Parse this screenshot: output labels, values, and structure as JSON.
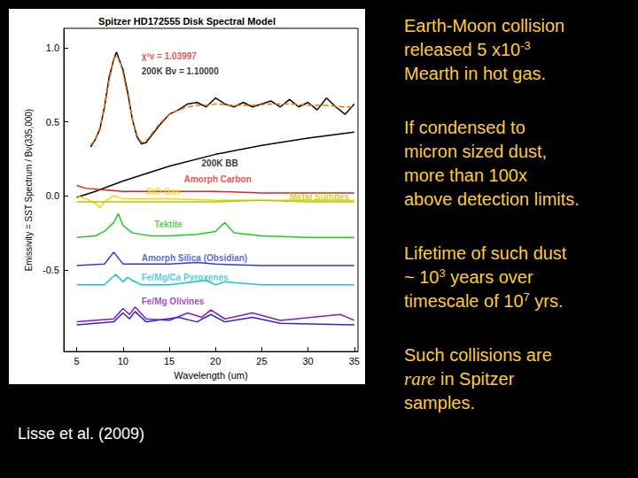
{
  "chart_data": {
    "type": "line",
    "title": "Spitzer HD172555 Disk Spectral Model",
    "x_label": "Wavelength (um)",
    "y_label": "Emissivity = SST Spectrum / Bν(335,000)",
    "xlim": [
      3.6,
      35.4
    ],
    "xticks": [
      5,
      10,
      15,
      20,
      25,
      30,
      35
    ],
    "ylim": [
      -1.05,
      1.13
    ],
    "yticks": [
      -0.5,
      {
        "value": 0,
        "label": "0.0"
      },
      0.5,
      {
        "value": 1,
        "label": "1.0"
      }
    ],
    "grid": false,
    "series": [
      {
        "color": "#000000",
        "line_style": "solid",
        "x": [
          6.5,
          7,
          7.5,
          8,
          8.5,
          9,
          9.3,
          9.7,
          10,
          10.5,
          11,
          11.5,
          12,
          12.5,
          13,
          14,
          15,
          16,
          17,
          18,
          19,
          20,
          21,
          22,
          23,
          24,
          25,
          26,
          27,
          28,
          29,
          30,
          31,
          32,
          33,
          34,
          35
        ],
        "values": [
          0.33,
          0.38,
          0.45,
          0.6,
          0.8,
          0.92,
          0.97,
          0.9,
          0.85,
          0.7,
          0.52,
          0.4,
          0.35,
          0.36,
          0.4,
          0.48,
          0.55,
          0.58,
          0.62,
          0.63,
          0.6,
          0.66,
          0.62,
          0.6,
          0.63,
          0.6,
          0.62,
          0.64,
          0.6,
          0.65,
          0.6,
          0.63,
          0.58,
          0.66,
          0.6,
          0.55,
          0.62
        ]
      },
      {
        "color": "#ff6a00",
        "line_style": "dashed",
        "x": [
          6.5,
          7,
          7.5,
          8,
          8.5,
          9,
          9.3,
          9.7,
          10,
          10.5,
          11,
          11.5,
          12,
          12.5,
          13,
          14,
          15,
          16,
          17,
          18,
          19,
          20,
          22,
          24,
          26,
          28,
          30,
          32,
          34,
          35
        ],
        "values": [
          0.34,
          0.38,
          0.46,
          0.6,
          0.78,
          0.92,
          0.95,
          0.9,
          0.83,
          0.68,
          0.52,
          0.41,
          0.36,
          0.37,
          0.41,
          0.49,
          0.55,
          0.58,
          0.6,
          0.61,
          0.61,
          0.62,
          0.61,
          0.61,
          0.62,
          0.62,
          0.61,
          0.61,
          0.6,
          0.6
        ]
      },
      {
        "color": "#000000",
        "line_style": "solid",
        "x": [
          5,
          7,
          10,
          15,
          20,
          25,
          30,
          35
        ],
        "values": [
          -0.01,
          0.03,
          0.1,
          0.2,
          0.28,
          0.34,
          0.39,
          0.43
        ]
      },
      {
        "color": "#e8221b",
        "line_style": "solid",
        "x": [
          5,
          6,
          8,
          10,
          15,
          20,
          25,
          30,
          35
        ],
        "values": [
          0.07,
          0.05,
          0.04,
          0.03,
          0.03,
          0.03,
          0.02,
          0.02,
          0.02
        ]
      },
      {
        "color": "#f2d600",
        "line_style": "solid",
        "x": [
          5,
          6,
          7,
          7.5,
          8,
          9,
          10,
          12,
          15,
          20,
          25,
          30,
          35
        ],
        "values": [
          0.0,
          -0.02,
          -0.05,
          -0.08,
          -0.04,
          0.0,
          -0.02,
          -0.02,
          -0.02,
          -0.03,
          -0.03,
          -0.03,
          -0.03
        ]
      },
      {
        "color": "#b5c900",
        "line_style": "solid",
        "x": [
          5,
          10,
          15,
          20,
          25,
          30,
          35
        ],
        "values": [
          -0.04,
          -0.04,
          -0.04,
          -0.04,
          -0.03,
          -0.04,
          -0.04
        ]
      },
      {
        "color": "#22c922",
        "line_style": "solid",
        "x": [
          5,
          7,
          8,
          9,
          9.5,
          10,
          11,
          13,
          15,
          18,
          20,
          21,
          22,
          25,
          30,
          35
        ],
        "values": [
          -0.28,
          -0.27,
          -0.24,
          -0.18,
          -0.12,
          -0.2,
          -0.25,
          -0.27,
          -0.27,
          -0.26,
          -0.24,
          -0.18,
          -0.25,
          -0.27,
          -0.28,
          -0.28
        ]
      },
      {
        "color": "#2d3fd1",
        "line_style": "solid",
        "x": [
          5,
          8,
          9,
          9.5,
          10,
          12,
          15,
          18,
          20,
          25,
          35
        ],
        "values": [
          -0.47,
          -0.46,
          -0.38,
          -0.42,
          -0.46,
          -0.46,
          -0.46,
          -0.45,
          -0.46,
          -0.47,
          -0.47
        ]
      },
      {
        "color": "#19c3d6",
        "line_style": "solid",
        "x": [
          5,
          8,
          9.2,
          10,
          10.5,
          11,
          12,
          15,
          19,
          20,
          21,
          25,
          35
        ],
        "values": [
          -0.6,
          -0.6,
          -0.53,
          -0.58,
          -0.55,
          -0.57,
          -0.6,
          -0.6,
          -0.57,
          -0.6,
          -0.58,
          -0.6,
          -0.6
        ]
      },
      {
        "color": "#8a1ab8",
        "line_style": "solid",
        "x": [
          5,
          9,
          10,
          10.7,
          11.3,
          12.5,
          15,
          17,
          18.5,
          19.5,
          21,
          24,
          27,
          33.5,
          35
        ],
        "values": [
          -0.85,
          -0.83,
          -0.76,
          -0.8,
          -0.75,
          -0.83,
          -0.84,
          -0.79,
          -0.82,
          -0.77,
          -0.83,
          -0.79,
          -0.84,
          -0.8,
          -0.84
        ]
      },
      {
        "color": "#2a2ad0",
        "line_style": "solid",
        "x": [
          5,
          9,
          10,
          10.7,
          11.3,
          12.5,
          16,
          18,
          19.5,
          21,
          24,
          27,
          35
        ],
        "values": [
          -0.87,
          -0.85,
          -0.79,
          -0.83,
          -0.78,
          -0.85,
          -0.82,
          -0.85,
          -0.8,
          -0.85,
          -0.82,
          -0.86,
          -0.87
        ]
      }
    ],
    "annotations": [
      {
        "text": "χ²ν = 1.03997",
        "x": 12,
        "y": 0.94,
        "color": "#e8221b"
      },
      {
        "text": "200K Bν = 1.10000",
        "x": 12,
        "y": 0.84,
        "color": "#000000"
      },
      {
        "text": "200K BB",
        "x": 18.5,
        "y": 0.22,
        "color": "#000000"
      },
      {
        "text": "Amorph Carbon",
        "x": 16.6,
        "y": 0.11,
        "color": "#e8221b"
      },
      {
        "text": "SiO Gas",
        "x": 12.5,
        "y": 0.03,
        "color": "#f2d600"
      },
      {
        "text": "Metal Sulfides",
        "x": 28,
        "y": -0.01,
        "color": "#b5c900"
      },
      {
        "text": "Tektite",
        "x": 13.4,
        "y": -0.19,
        "color": "#22c922"
      },
      {
        "text": "Amorph Silica (Obsidian)",
        "x": 12,
        "y": -0.42,
        "color": "#2d3fd1"
      },
      {
        "text": "Fe/Mg/Ca Pyroxenes",
        "x": 12,
        "y": -0.55,
        "color": "#19c3d6"
      },
      {
        "text": "Fe/Mg Olivines",
        "x": 12,
        "y": -0.71,
        "color": "#8a1ab8"
      }
    ]
  },
  "slide": {
    "paragraphs": [
      [
        [
          "Earth-Moon collision"
        ],
        [
          {
            "text": "released 5 x10"
          },
          {
            "text": "-3",
            "sup": true
          }
        ],
        [
          "Mearth in hot gas."
        ]
      ],
      [
        [
          "If condensed to"
        ],
        [
          "micron sized dust,"
        ],
        [
          "more than  100x"
        ],
        [
          "above detection limits."
        ]
      ],
      [
        [
          "Lifetime of such dust"
        ],
        [
          {
            "text": "~ 10"
          },
          {
            "text": "3",
            "sup": true
          },
          {
            "text": " years over"
          }
        ],
        [
          {
            "text": "timescale of 10"
          },
          {
            "text": "7",
            "sup": true
          },
          {
            "text": " yrs."
          }
        ]
      ],
      [
        [
          "Such collisions are"
        ],
        [
          {
            "text": "rare",
            "italic": true
          },
          {
            "text": " in Spitzer"
          }
        ],
        [
          "samples."
        ]
      ]
    ],
    "citation": "Lisse et al. (2009)"
  }
}
